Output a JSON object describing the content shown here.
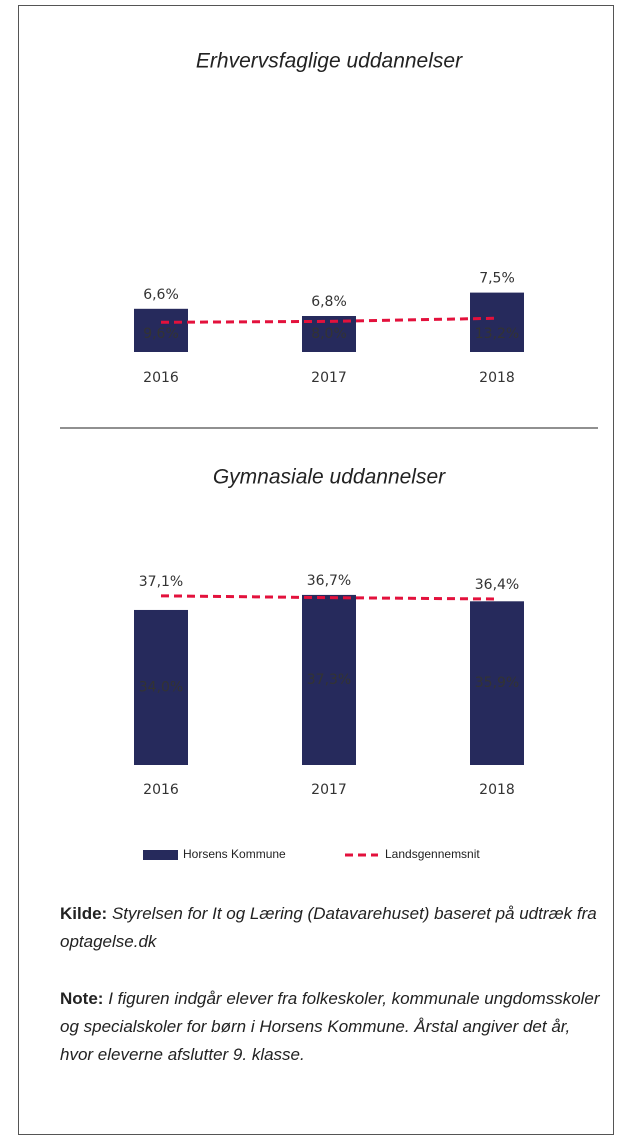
{
  "chart_data": [
    {
      "type": "bar",
      "title": "Erhvervsfaglige uddannelser",
      "categories": [
        "2016",
        "2017",
        "2018"
      ],
      "series": [
        {
          "name": "Horsens Kommune",
          "type": "bar",
          "color": "#262a5c",
          "values": [
            9.6,
            8.0,
            13.2
          ],
          "value_labels": [
            "9,6%",
            "8,0%",
            "13,2%"
          ]
        },
        {
          "name": "Landsgennemsnit",
          "type": "line",
          "color": "#e3113c",
          "values": [
            6.6,
            6.8,
            7.5
          ],
          "value_labels": [
            "6,6%",
            "6,8%",
            "7,5%"
          ]
        }
      ]
    },
    {
      "type": "bar",
      "title": "Gymnasiale uddannelser",
      "categories": [
        "2016",
        "2017",
        "2018"
      ],
      "series": [
        {
          "name": "Horsens Kommune",
          "type": "bar",
          "color": "#262a5c",
          "values": [
            34.0,
            37.3,
            35.9
          ],
          "value_labels": [
            "34,0%",
            "37,3%",
            "35,9%"
          ]
        },
        {
          "name": "Landsgennemsnit",
          "type": "line",
          "color": "#e3113c",
          "values": [
            37.1,
            36.7,
            36.4
          ],
          "value_labels": [
            "37,1%",
            "36,7%",
            "36,4%"
          ]
        }
      ]
    }
  ],
  "source": {
    "label": "Kilde:",
    "text": "Styrelsen for It og Læring (Datavarehuset) baseret på udtræk fra optagelse.dk"
  },
  "note": {
    "label": "Note:",
    "text": "I figuren indgår elever fra folkeskoler, kommunale ungdomsskoler og specialskoler for børn i Horsens Kommune. Årstal angiver det år, hvor eleverne afslutter 9. klasse."
  }
}
